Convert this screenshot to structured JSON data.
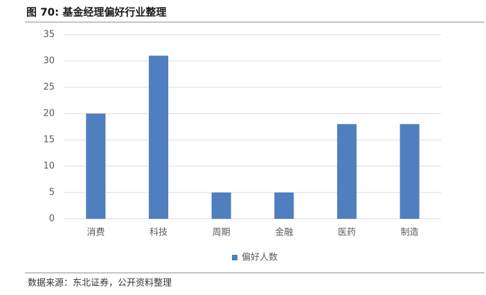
{
  "chart_data": {
    "type": "bar",
    "title": "图 70:  基金经理偏好行业整理",
    "categories": [
      "消费",
      "科技",
      "周期",
      "金融",
      "医药",
      "制造"
    ],
    "series": [
      {
        "name": "偏好人数",
        "color": "#4f7fbf",
        "values": [
          20,
          31,
          5,
          5,
          18,
          18
        ]
      }
    ],
    "ylim": [
      0,
      35
    ],
    "yticks": [
      0,
      5,
      10,
      15,
      20,
      25,
      30,
      35
    ],
    "grid": true,
    "legend": "bottom",
    "source": "数据来源：东北证券，公开资料整理"
  }
}
